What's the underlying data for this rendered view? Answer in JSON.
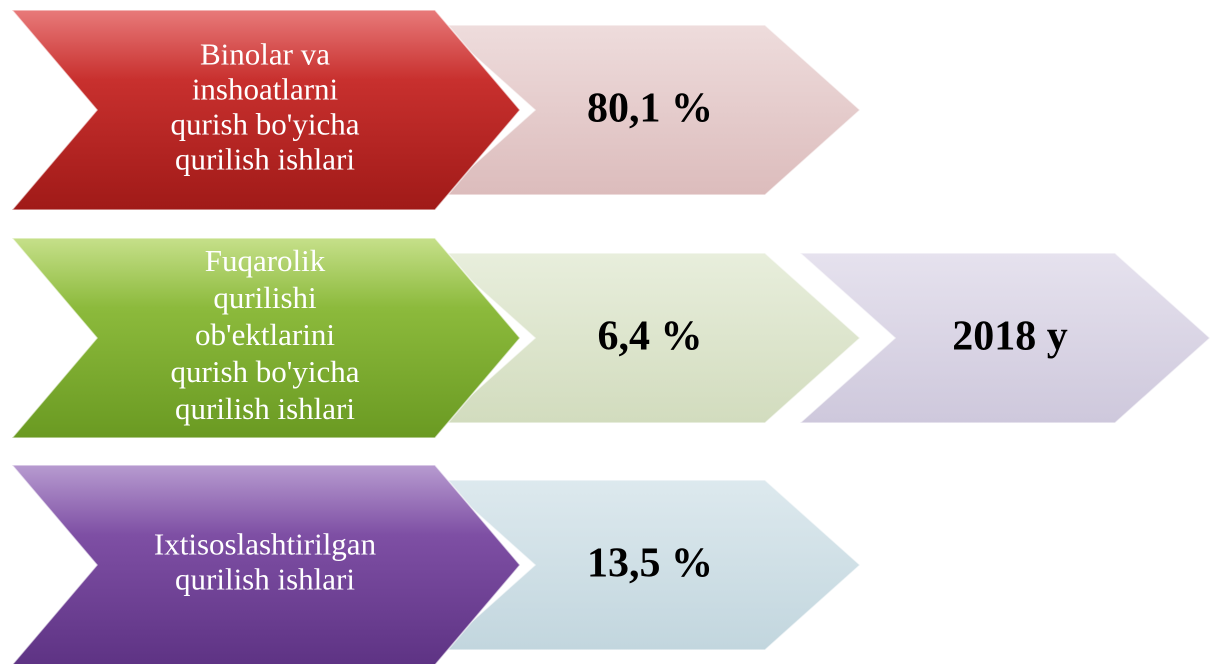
{
  "rows": [
    {
      "label": [
        "Binolar va",
        "inshoatlarni",
        "qurish bo'yicha",
        "qurilish ishlari"
      ],
      "value": "80,1 %"
    },
    {
      "label": [
        "Fuqarolik",
        "qurilishi",
        "ob'ektlarini",
        "qurish bo'yicha",
        "qurilish ishlari"
      ],
      "value": "6,4 %",
      "extra": "2018 y"
    },
    {
      "label": [
        "Ixtisoslashtirilgan",
        "qurilish ishlari"
      ],
      "value": "13,5 %"
    }
  ]
}
